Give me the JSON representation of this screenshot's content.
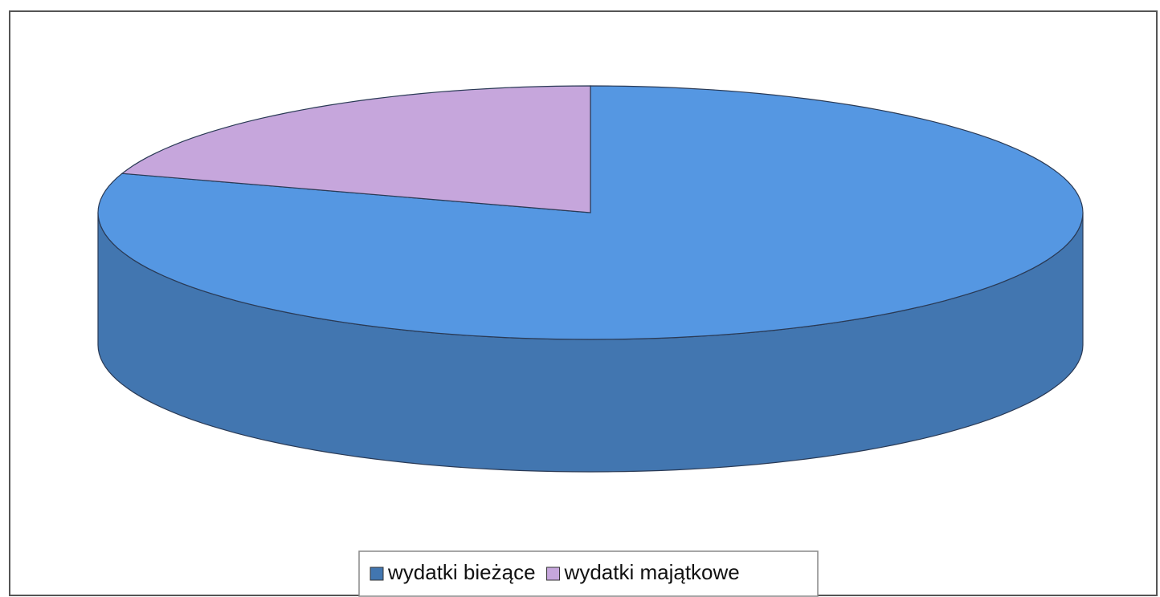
{
  "chart_data": {
    "type": "pie",
    "categories": [
      "wydatki bieżące",
      "wydatki majątkowe"
    ],
    "values": [
      80,
      20
    ],
    "colors": [
      "#5597e2",
      "#c6a6dc"
    ],
    "legend": "bottom"
  }
}
